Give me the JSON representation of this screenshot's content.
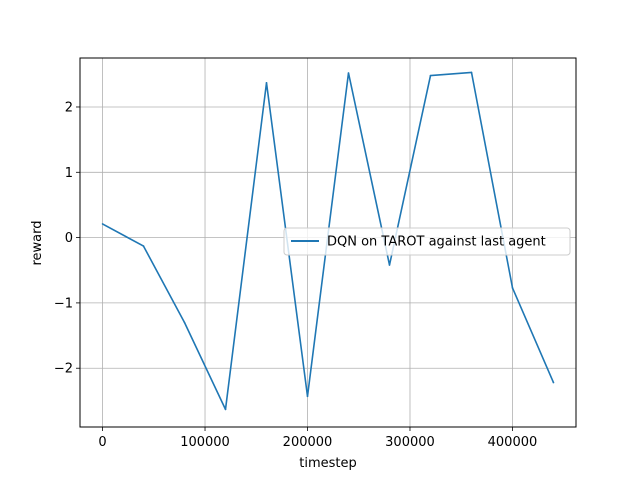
{
  "chart_data": {
    "type": "line",
    "xlabel": "timestep",
    "ylabel": "reward",
    "xlim": [
      -22000,
      462000
    ],
    "ylim": [
      -2.9,
      2.75
    ],
    "grid": true,
    "legend_placement": "center-right",
    "x_ticks": [
      0,
      100000,
      200000,
      300000,
      400000
    ],
    "x_tick_labels": [
      "0",
      "100000",
      "200000",
      "300000",
      "400000"
    ],
    "y_ticks": [
      -2,
      -1,
      0,
      1,
      2
    ],
    "y_tick_labels": [
      "−2",
      "−1",
      "0",
      "1",
      "2"
    ],
    "series": [
      {
        "name": "DQN on TAROT against last agent",
        "color": "#1f77b4",
        "x": [
          0,
          40000,
          80000,
          120000,
          160000,
          200000,
          240000,
          280000,
          320000,
          360000,
          400000,
          440000
        ],
        "y": [
          0.21,
          -0.13,
          -1.3,
          -2.63,
          2.37,
          -2.43,
          2.52,
          -0.42,
          2.48,
          2.53,
          -0.77,
          -2.22
        ]
      }
    ]
  }
}
